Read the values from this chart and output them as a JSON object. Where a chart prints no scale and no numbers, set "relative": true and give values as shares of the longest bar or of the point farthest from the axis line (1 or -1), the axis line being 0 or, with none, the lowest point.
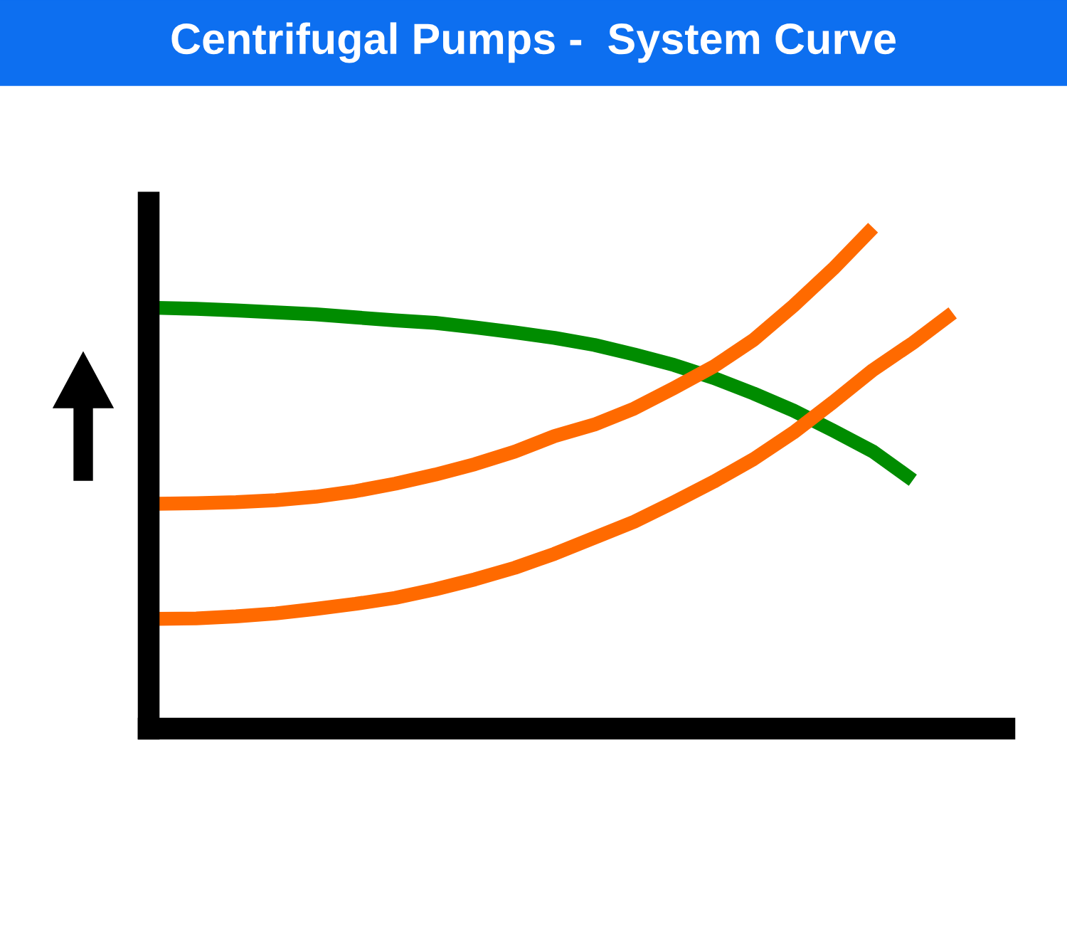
{
  "chart_data": {
    "type": "line",
    "title": "Centrifugal Pumps -  System Curve",
    "relative": true,
    "categories": [
      null,
      null,
      null,
      null,
      null,
      null,
      null,
      null,
      null,
      null,
      null,
      null,
      null,
      null,
      null,
      null,
      null,
      null,
      null,
      null,
      null
    ],
    "series": [
      {
        "color": "#008c00",
        "values": [
          0.84,
          0.838,
          0.835,
          0.831,
          0.827,
          0.821,
          0.815,
          0.81,
          0.801,
          0.791,
          0.78,
          0.766,
          0.747,
          0.726,
          0.7,
          0.669,
          0.635,
          0.595,
          0.553,
          0.496,
          null
        ]
      },
      {
        "color": "#ff6a00",
        "values": [
          0.449,
          0.45,
          0.452,
          0.456,
          0.463,
          0.474,
          0.489,
          0.507,
          0.528,
          0.553,
          0.584,
          0.607,
          0.639,
          0.68,
          0.723,
          0.776,
          0.844,
          0.918,
          1.0,
          null,
          null
        ]
      },
      {
        "color": "#ff6a00",
        "values": [
          0.219,
          0.22,
          0.224,
          0.23,
          0.239,
          0.249,
          0.261,
          0.278,
          0.298,
          0.321,
          0.349,
          0.381,
          0.413,
          0.452,
          0.493,
          0.538,
          0.591,
          0.652,
          0.716,
          0.77,
          0.83
        ]
      }
    ],
    "grid": false,
    "legend": false,
    "marker": "none",
    "line_style": "solid"
  }
}
